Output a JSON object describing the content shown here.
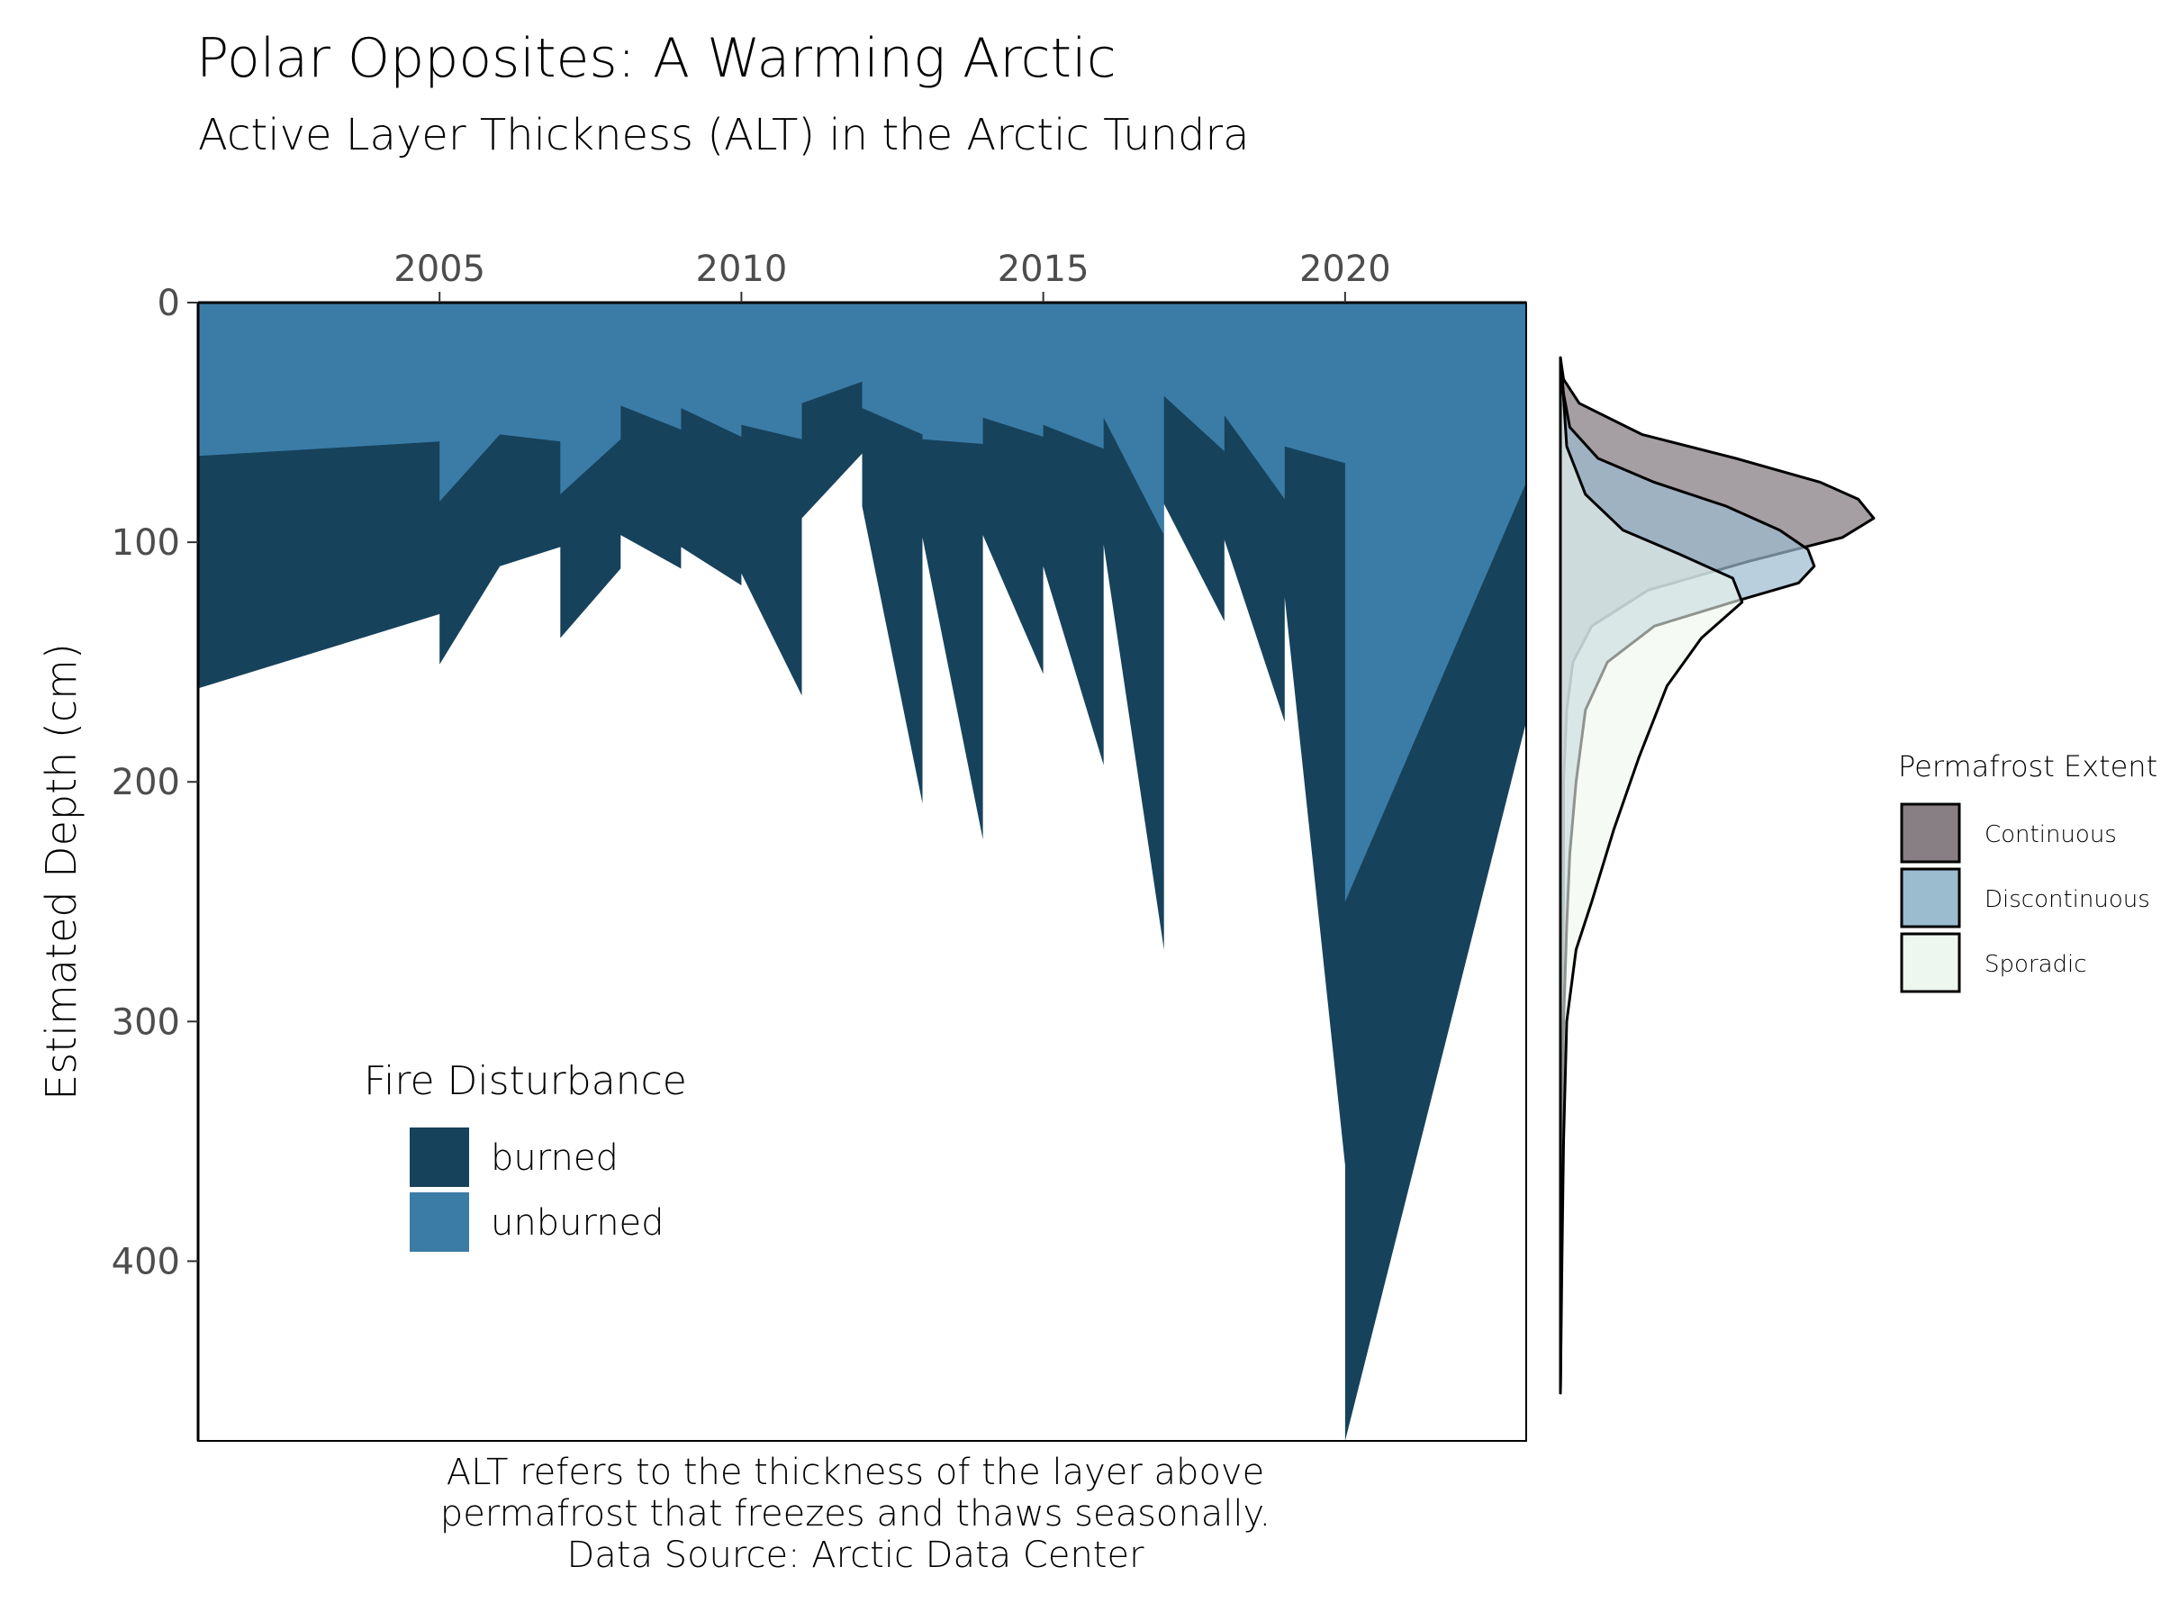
{
  "title": "Polar Opposites: A Warming Arctic",
  "subtitle": "Active Layer Thickness (ALT) in the Arctic Tundra",
  "caption": [
    "ALT refers to the thickness of the layer above",
    "permafrost that freezes and thaws seasonally.",
    "Data Source: Arctic Data Center"
  ],
  "colors": {
    "burned": "#17425c",
    "unburned": "#3b7ca6",
    "continuous": "#877f84",
    "discontinuous": "#9bbbcf",
    "sporadic": "#eef7ef"
  },
  "chart_data": [
    {
      "type": "area",
      "title": "",
      "xlabel": "",
      "ylabel": "Estimated Depth (cm)",
      "x_axis_position": "top",
      "y_reversed": true,
      "xlim": [
        2001,
        2023
      ],
      "ylim": [
        0,
        475
      ],
      "x_ticks": [
        2005,
        2010,
        2015,
        2020
      ],
      "y_ticks": [
        0,
        100,
        200,
        300,
        400
      ],
      "legend_title": "Fire Disturbance",
      "legend_placement": "bottom-left inside",
      "series": [
        {
          "name": "unburned",
          "color": "#3b7ca6",
          "points": [
            [
              2001,
              64
            ],
            [
              2005,
              58
            ],
            [
              2005,
              83
            ],
            [
              2006,
              55
            ],
            [
              2007,
              58
            ],
            [
              2007,
              80
            ],
            [
              2008,
              57
            ],
            [
              2008,
              43
            ],
            [
              2009,
              53
            ],
            [
              2009,
              44
            ],
            [
              2010,
              56
            ],
            [
              2010,
              51
            ],
            [
              2011,
              57
            ],
            [
              2011,
              42
            ],
            [
              2012,
              33
            ],
            [
              2012,
              44
            ],
            [
              2013,
              55
            ],
            [
              2013,
              57
            ],
            [
              2014,
              59
            ],
            [
              2014,
              48
            ],
            [
              2015,
              56
            ],
            [
              2015,
              51
            ],
            [
              2016,
              61
            ],
            [
              2016,
              48
            ],
            [
              2017,
              97
            ],
            [
              2017,
              39
            ],
            [
              2018,
              62
            ],
            [
              2018,
              47
            ],
            [
              2019,
              82
            ],
            [
              2019,
              60
            ],
            [
              2020,
              67
            ],
            [
              2020,
              250
            ],
            [
              2023,
              75
            ]
          ]
        },
        {
          "name": "burned",
          "color": "#17425c",
          "points": [
            [
              2001,
              161
            ],
            [
              2005,
              130
            ],
            [
              2005,
              151
            ],
            [
              2006,
              110
            ],
            [
              2007,
              102
            ],
            [
              2007,
              140
            ],
            [
              2008,
              111
            ],
            [
              2008,
              97
            ],
            [
              2009,
              111
            ],
            [
              2009,
              102
            ],
            [
              2010,
              118
            ],
            [
              2010,
              113
            ],
            [
              2011,
              164
            ],
            [
              2011,
              90
            ],
            [
              2012,
              63
            ],
            [
              2012,
              85
            ],
            [
              2013,
              209
            ],
            [
              2013,
              98
            ],
            [
              2014,
              224
            ],
            [
              2014,
              97
            ],
            [
              2015,
              155
            ],
            [
              2015,
              110
            ],
            [
              2016,
              193
            ],
            [
              2016,
              101
            ],
            [
              2017,
              270
            ],
            [
              2017,
              84
            ],
            [
              2018,
              133
            ],
            [
              2018,
              99
            ],
            [
              2019,
              175
            ],
            [
              2019,
              123
            ],
            [
              2020,
              360
            ],
            [
              2020,
              475
            ],
            [
              2023,
              175
            ]
          ]
        }
      ]
    },
    {
      "type": "area",
      "title": "",
      "orientation": "density along depth axis",
      "ylim": [
        0,
        475
      ],
      "legend_title": "Permafrost Extent",
      "legend_placement": "right",
      "series": [
        {
          "name": "Continuous",
          "color": "#877f84",
          "opacity": 0.75,
          "points": [
            [
              23,
              0
            ],
            [
              32,
              1
            ],
            [
              42,
              6
            ],
            [
              55,
              26
            ],
            [
              65,
              56
            ],
            [
              75,
              83
            ],
            [
              82,
              95
            ],
            [
              90,
              100
            ],
            [
              98,
              90
            ],
            [
              108,
              60
            ],
            [
              120,
              28
            ],
            [
              135,
              10
            ],
            [
              150,
              4
            ],
            [
              170,
              2
            ],
            [
              200,
              1
            ],
            [
              250,
              1
            ],
            [
              300,
              0.5
            ],
            [
              350,
              0.5
            ],
            [
              400,
              0.3
            ],
            [
              455,
              0
            ]
          ]
        },
        {
          "name": "Discontinuous",
          "color": "#9bbbcf",
          "opacity": 0.7,
          "points": [
            [
              23,
              0
            ],
            [
              38,
              1
            ],
            [
              52,
              3
            ],
            [
              65,
              12
            ],
            [
              75,
              30
            ],
            [
              85,
              53
            ],
            [
              95,
              70
            ],
            [
              103,
              79
            ],
            [
              110,
              81
            ],
            [
              117,
              76
            ],
            [
              125,
              55
            ],
            [
              135,
              30
            ],
            [
              150,
              15
            ],
            [
              170,
              8
            ],
            [
              200,
              5
            ],
            [
              230,
              3
            ],
            [
              260,
              2
            ],
            [
              300,
              1
            ],
            [
              350,
              0.5
            ],
            [
              400,
              0.3
            ],
            [
              455,
              0
            ]
          ]
        },
        {
          "name": "Sporadic",
          "color": "#eef7ef",
          "opacity": 0.6,
          "points": [
            [
              23,
              0
            ],
            [
              40,
              1
            ],
            [
              60,
              2
            ],
            [
              80,
              8
            ],
            [
              95,
              20
            ],
            [
              105,
              38
            ],
            [
              115,
              55
            ],
            [
              125,
              58
            ],
            [
              140,
              45
            ],
            [
              160,
              34
            ],
            [
              190,
              25
            ],
            [
              220,
              17
            ],
            [
              250,
              10
            ],
            [
              270,
              5
            ],
            [
              300,
              2
            ],
            [
              350,
              1
            ],
            [
              400,
              0.5
            ],
            [
              455,
              0
            ]
          ]
        }
      ]
    }
  ]
}
